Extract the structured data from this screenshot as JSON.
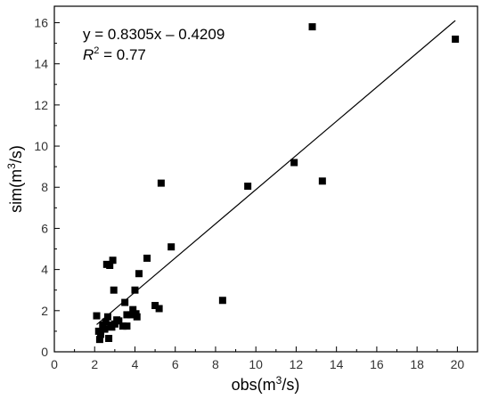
{
  "chart_data": {
    "type": "scatter",
    "xlabel": {
      "prefix": "obs(m",
      "sup": "3",
      "suffix": "/s)"
    },
    "ylabel": {
      "prefix": "sim(m",
      "sup": "3",
      "suffix": "/s)"
    },
    "xlim": [
      0,
      21
    ],
    "ylim": [
      0,
      16.8
    ],
    "xticks": [
      0,
      2,
      4,
      6,
      8,
      10,
      12,
      14,
      16,
      18,
      20
    ],
    "yticks": [
      0,
      2,
      4,
      6,
      8,
      10,
      12,
      14,
      16
    ],
    "annotation": {
      "equation": "y = 0.8305x – 0.4209",
      "r2_symbol": "R",
      "r2_exp": "2",
      "r2_value": " = 0.77"
    },
    "fit": {
      "slope": 0.8305,
      "intercept": -0.4209,
      "x_range": [
        2.1,
        19.9
      ]
    },
    "marker_color": "#000000",
    "points": [
      {
        "x": 2.1,
        "y": 1.75
      },
      {
        "x": 2.2,
        "y": 1.0
      },
      {
        "x": 2.25,
        "y": 0.6
      },
      {
        "x": 2.3,
        "y": 0.85
      },
      {
        "x": 2.4,
        "y": 1.3
      },
      {
        "x": 2.5,
        "y": 1.1
      },
      {
        "x": 2.55,
        "y": 1.45
      },
      {
        "x": 2.6,
        "y": 4.25
      },
      {
        "x": 2.65,
        "y": 1.7
      },
      {
        "x": 2.7,
        "y": 0.65
      },
      {
        "x": 2.75,
        "y": 4.2
      },
      {
        "x": 2.8,
        "y": 1.3
      },
      {
        "x": 2.85,
        "y": 1.2
      },
      {
        "x": 2.9,
        "y": 4.45
      },
      {
        "x": 2.95,
        "y": 3.0
      },
      {
        "x": 3.0,
        "y": 1.35
      },
      {
        "x": 3.1,
        "y": 1.55
      },
      {
        "x": 3.2,
        "y": 1.5
      },
      {
        "x": 3.4,
        "y": 1.25
      },
      {
        "x": 3.5,
        "y": 2.4
      },
      {
        "x": 3.6,
        "y": 1.25
      },
      {
        "x": 3.6,
        "y": 1.8
      },
      {
        "x": 3.8,
        "y": 1.8
      },
      {
        "x": 3.9,
        "y": 2.05
      },
      {
        "x": 4.0,
        "y": 3.0
      },
      {
        "x": 4.05,
        "y": 1.85
      },
      {
        "x": 4.1,
        "y": 1.7
      },
      {
        "x": 4.2,
        "y": 3.8
      },
      {
        "x": 4.6,
        "y": 4.55
      },
      {
        "x": 5.0,
        "y": 2.25
      },
      {
        "x": 5.2,
        "y": 2.1
      },
      {
        "x": 5.3,
        "y": 8.2
      },
      {
        "x": 5.8,
        "y": 5.1
      },
      {
        "x": 8.35,
        "y": 2.5
      },
      {
        "x": 9.6,
        "y": 8.05
      },
      {
        "x": 11.9,
        "y": 9.2
      },
      {
        "x": 12.8,
        "y": 15.8
      },
      {
        "x": 13.3,
        "y": 8.3
      },
      {
        "x": 19.9,
        "y": 15.2
      }
    ]
  }
}
